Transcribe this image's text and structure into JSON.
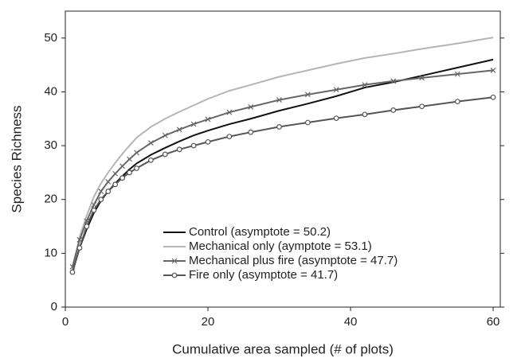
{
  "chart_data": {
    "type": "line",
    "xlabel": "Cumulative area sampled (# of plots)",
    "ylabel": "Species Richness",
    "x": [
      1,
      2,
      3,
      4,
      5,
      6,
      7,
      8,
      9,
      10,
      12,
      14,
      16,
      18,
      20,
      23,
      26,
      30,
      34,
      38,
      42,
      46,
      50,
      55,
      60
    ],
    "xlim": [
      0,
      61
    ],
    "xticks": [
      0,
      20,
      40,
      60
    ],
    "ylim": [
      0,
      55
    ],
    "yticks": [
      0,
      10,
      20,
      30,
      40,
      50
    ],
    "series": [
      {
        "name": "Control (asymptote = 50.2)",
        "color": "#111111",
        "marker": "none",
        "values": [
          6.5,
          11,
          14.5,
          17.5,
          19.8,
          21.5,
          23,
          24.3,
          25.6,
          26.7,
          28.3,
          29.6,
          30.8,
          31.9,
          32.8,
          34,
          35,
          36.5,
          37.8,
          39.2,
          40.8,
          41.8,
          43,
          44.5,
          46
        ]
      },
      {
        "name": "Mechanical only (aymptote = 53.1)",
        "color": "#b5b5b5",
        "marker": "none",
        "values": [
          7,
          13,
          17,
          20.5,
          23,
          25,
          26.8,
          28.5,
          30,
          31.5,
          33.5,
          35,
          36.3,
          37.5,
          38.7,
          40.2,
          41.3,
          42.8,
          44,
          45.2,
          46.3,
          47.1,
          48,
          49,
          50.1
        ]
      },
      {
        "name": "Mechanical plus fire (asymptote = 47.7)",
        "color": "#666666",
        "marker": "x",
        "values": [
          7.5,
          12.5,
          16,
          19,
          21.5,
          23.3,
          24.8,
          26.2,
          27.5,
          28.7,
          30.5,
          31.9,
          33,
          34,
          34.9,
          36.2,
          37.2,
          38.5,
          39.5,
          40.4,
          41.3,
          42,
          42.6,
          43.3,
          44
        ]
      },
      {
        "name": "Fire only (asymptote = 41.7)",
        "color": "#555555",
        "marker": "circle",
        "values": [
          6.5,
          11,
          15,
          18,
          20,
          21.5,
          22.8,
          24,
          25,
          25.8,
          27.3,
          28.4,
          29.3,
          30,
          30.7,
          31.7,
          32.5,
          33.5,
          34.3,
          35.1,
          35.8,
          36.6,
          37.3,
          38.2,
          39
        ]
      }
    ]
  }
}
